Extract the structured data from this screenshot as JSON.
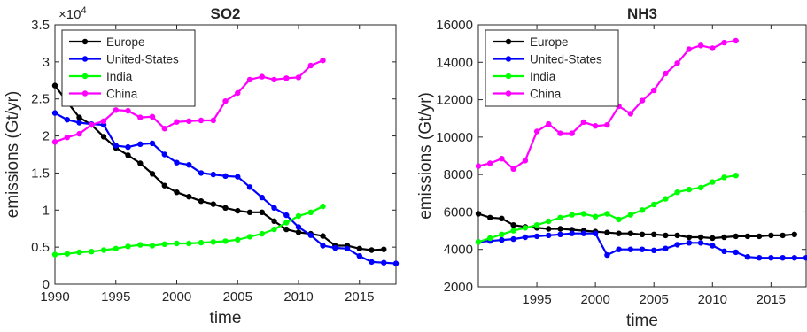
{
  "chart_data": [
    {
      "type": "line",
      "title": "SO2",
      "xlabel": "time",
      "ylabel": "emissions (Gt/yr)",
      "y_exponent": "×10",
      "y_exponent_power": "4",
      "xlim": [
        1990,
        2018
      ],
      "ylim": [
        0,
        3.5
      ],
      "xticks": [
        "1990",
        "1995",
        "2000",
        "2005",
        "2010",
        "2015"
      ],
      "yticks": [
        "0",
        "0.5",
        "1",
        "1.5",
        "2",
        "2.5",
        "3",
        "3.5"
      ],
      "legend_position": "top-left",
      "series": [
        {
          "name": "Europe",
          "color": "#000000",
          "x": [
            1990,
            1991,
            1992,
            1993,
            1994,
            1995,
            1996,
            1997,
            1998,
            1999,
            2000,
            2001,
            2002,
            2003,
            2004,
            2005,
            2006,
            2007,
            2008,
            2009,
            2010,
            2011,
            2012,
            2013,
            2014,
            2015,
            2016,
            2017
          ],
          "y": [
            2.68,
            2.46,
            2.25,
            2.15,
            1.99,
            1.84,
            1.74,
            1.63,
            1.49,
            1.33,
            1.24,
            1.18,
            1.12,
            1.08,
            1.03,
            0.99,
            0.97,
            0.97,
            0.85,
            0.74,
            0.7,
            0.68,
            0.65,
            0.52,
            0.52,
            0.48,
            0.46,
            0.47
          ]
        },
        {
          "name": "United-States",
          "color": "#0000ff",
          "x": [
            1990,
            1991,
            1992,
            1993,
            1994,
            1995,
            1996,
            1997,
            1998,
            1999,
            2000,
            2001,
            2002,
            2003,
            2004,
            2005,
            2006,
            2007,
            2008,
            2009,
            2010,
            2011,
            2012,
            2013,
            2014,
            2015,
            2016,
            2017,
            2018
          ],
          "y": [
            2.31,
            2.22,
            2.18,
            2.16,
            2.15,
            1.87,
            1.85,
            1.89,
            1.9,
            1.75,
            1.64,
            1.61,
            1.5,
            1.48,
            1.46,
            1.45,
            1.31,
            1.17,
            1.03,
            0.93,
            0.77,
            0.66,
            0.52,
            0.49,
            0.48,
            0.38,
            0.3,
            0.29,
            0.28
          ]
        },
        {
          "name": "India",
          "color": "#00ff00",
          "x": [
            1990,
            1991,
            1992,
            1993,
            1994,
            1995,
            1996,
            1997,
            1998,
            1999,
            2000,
            2001,
            2002,
            2003,
            2004,
            2005,
            2006,
            2007,
            2008,
            2009,
            2010,
            2011,
            2012
          ],
          "y": [
            0.4,
            0.41,
            0.43,
            0.44,
            0.46,
            0.48,
            0.51,
            0.53,
            0.52,
            0.54,
            0.55,
            0.55,
            0.56,
            0.57,
            0.58,
            0.6,
            0.64,
            0.68,
            0.74,
            0.83,
            0.92,
            0.97,
            1.05
          ]
        },
        {
          "name": "China",
          "color": "#ff00ff",
          "x": [
            1990,
            1991,
            1992,
            1993,
            1994,
            1995,
            1996,
            1997,
            1998,
            1999,
            2000,
            2001,
            2002,
            2003,
            2004,
            2005,
            2006,
            2007,
            2008,
            2009,
            2010,
            2011,
            2012
          ],
          "y": [
            1.92,
            1.98,
            2.03,
            2.15,
            2.2,
            2.35,
            2.34,
            2.25,
            2.26,
            2.1,
            2.19,
            2.2,
            2.21,
            2.21,
            2.47,
            2.58,
            2.76,
            2.8,
            2.76,
            2.78,
            2.79,
            2.95,
            3.02
          ]
        }
      ]
    },
    {
      "type": "line",
      "title": "NH3",
      "xlabel": "time",
      "ylabel": "emissions (Gt/yr)",
      "xlim": [
        1990,
        2018
      ],
      "ylim": [
        2000,
        16000
      ],
      "xticks": [
        "1995",
        "2000",
        "2005",
        "2010",
        "2015"
      ],
      "yticks": [
        "2000",
        "4000",
        "6000",
        "8000",
        "10000",
        "12000",
        "14000",
        "16000"
      ],
      "legend_position": "top-left",
      "series": [
        {
          "name": "Europe",
          "color": "#000000",
          "x": [
            1990,
            1991,
            1992,
            1993,
            1994,
            1995,
            1996,
            1997,
            1998,
            1999,
            2000,
            2001,
            2002,
            2003,
            2004,
            2005,
            2006,
            2007,
            2008,
            2009,
            2010,
            2011,
            2012,
            2013,
            2014,
            2015,
            2016,
            2017
          ],
          "y": [
            5900,
            5700,
            5650,
            5300,
            5200,
            5150,
            5100,
            5100,
            5050,
            5000,
            4950,
            4900,
            4850,
            4850,
            4800,
            4800,
            4750,
            4750,
            4650,
            4650,
            4600,
            4650,
            4700,
            4700,
            4700,
            4750,
            4750,
            4800
          ]
        },
        {
          "name": "United-States",
          "color": "#0000ff",
          "x": [
            1990,
            1991,
            1992,
            1993,
            1994,
            1995,
            1996,
            1997,
            1998,
            1999,
            2000,
            2001,
            2002,
            2003,
            2004,
            2005,
            2006,
            2007,
            2008,
            2009,
            2010,
            2011,
            2012,
            2013,
            2014,
            2015,
            2016,
            2017,
            2018
          ],
          "y": [
            4400,
            4450,
            4500,
            4550,
            4650,
            4700,
            4750,
            4800,
            4850,
            4850,
            4850,
            3700,
            4000,
            4000,
            4000,
            3950,
            4050,
            4250,
            4350,
            4350,
            4200,
            3900,
            3850,
            3600,
            3550,
            3550,
            3550,
            3550,
            3550
          ]
        },
        {
          "name": "India",
          "color": "#00ff00",
          "x": [
            1990,
            1991,
            1992,
            1993,
            1994,
            1995,
            1996,
            1997,
            1998,
            1999,
            2000,
            2001,
            2002,
            2003,
            2004,
            2005,
            2006,
            2007,
            2008,
            2009,
            2010,
            2011,
            2012
          ],
          "y": [
            4400,
            4600,
            4800,
            5000,
            5150,
            5300,
            5500,
            5700,
            5850,
            5900,
            5750,
            5900,
            5600,
            5850,
            6100,
            6400,
            6700,
            7050,
            7200,
            7300,
            7600,
            7850,
            7950
          ]
        },
        {
          "name": "China",
          "color": "#ff00ff",
          "x": [
            1990,
            1991,
            1992,
            1993,
            1994,
            1995,
            1996,
            1997,
            1998,
            1999,
            2000,
            2001,
            2002,
            2003,
            2004,
            2005,
            2006,
            2007,
            2008,
            2009,
            2010,
            2011,
            2012
          ],
          "y": [
            8450,
            8600,
            8850,
            8300,
            8750,
            10300,
            10700,
            10200,
            10200,
            10800,
            10600,
            10650,
            11650,
            11250,
            11950,
            12500,
            13400,
            13950,
            14700,
            14900,
            14750,
            15050,
            15150
          ]
        }
      ]
    }
  ]
}
